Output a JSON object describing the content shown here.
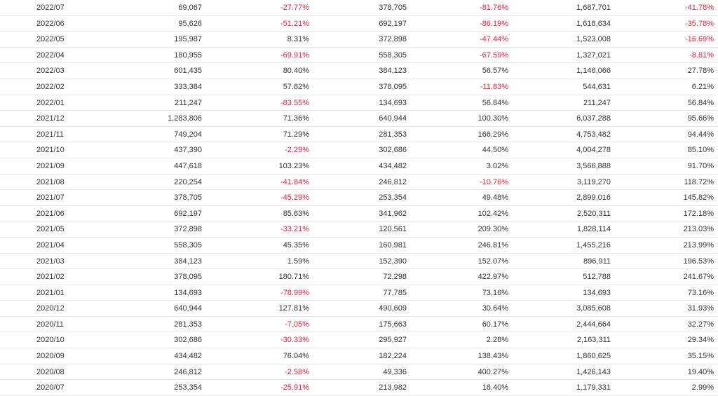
{
  "colors": {
    "negative": "#ee1f3b",
    "text": "#333333",
    "divider": "#e6e6e6"
  },
  "rows": [
    [
      "2022/07",
      "69,067",
      "-27.77%",
      "378,705",
      "-81.76%",
      "1,687,701",
      "-41.78%"
    ],
    [
      "2022/06",
      "95,626",
      "-51.21%",
      "692,197",
      "-86.19%",
      "1,618,634",
      "-35.78%"
    ],
    [
      "2022/05",
      "195,987",
      "8.31%",
      "372,898",
      "-47.44%",
      "1,523,008",
      "-16.69%"
    ],
    [
      "2022/04",
      "180,955",
      "-69.91%",
      "558,305",
      "-67.59%",
      "1,327,021",
      "-8.81%"
    ],
    [
      "2022/03",
      "601,435",
      "80.40%",
      "384,123",
      "56.57%",
      "1,146,066",
      "27.78%"
    ],
    [
      "2022/02",
      "333,384",
      "57.82%",
      "378,095",
      "-11.83%",
      "544,631",
      "6.21%"
    ],
    [
      "2022/01",
      "211,247",
      "-83.55%",
      "134,693",
      "56.84%",
      "211,247",
      "56.84%"
    ],
    [
      "2021/12",
      "1,283,806",
      "71.36%",
      "640,944",
      "100.30%",
      "6,037,288",
      "95.66%"
    ],
    [
      "2021/11",
      "749,204",
      "71.29%",
      "281,353",
      "166.29%",
      "4,753,482",
      "94.44%"
    ],
    [
      "2021/10",
      "437,390",
      "-2.29%",
      "302,686",
      "44.50%",
      "4,004,278",
      "85.10%"
    ],
    [
      "2021/09",
      "447,618",
      "103.23%",
      "434,482",
      "3.02%",
      "3,566,888",
      "91.70%"
    ],
    [
      "2021/08",
      "220,254",
      "-41.84%",
      "246,812",
      "-10.76%",
      "3,119,270",
      "118.72%"
    ],
    [
      "2021/07",
      "378,705",
      "-45.29%",
      "253,354",
      "49.48%",
      "2,899,016",
      "145.82%"
    ],
    [
      "2021/06",
      "692,197",
      "85.63%",
      "341,962",
      "102.42%",
      "2,520,311",
      "172.18%"
    ],
    [
      "2021/05",
      "372,898",
      "-33.21%",
      "120,561",
      "209.30%",
      "1,828,114",
      "213.03%"
    ],
    [
      "2021/04",
      "558,305",
      "45.35%",
      "160,981",
      "246.81%",
      "1,455,216",
      "213.99%"
    ],
    [
      "2021/03",
      "384,123",
      "1.59%",
      "152,390",
      "152.07%",
      "896,911",
      "196.53%"
    ],
    [
      "2021/02",
      "378,095",
      "180.71%",
      "72,298",
      "422.97%",
      "512,788",
      "241.67%"
    ],
    [
      "2021/01",
      "134,693",
      "-78.99%",
      "77,785",
      "73.16%",
      "134,693",
      "73.16%"
    ],
    [
      "2020/12",
      "640,944",
      "127.81%",
      "490,609",
      "30.64%",
      "3,085,608",
      "31.93%"
    ],
    [
      "2020/11",
      "281,353",
      "-7.05%",
      "175,663",
      "60.17%",
      "2,444,664",
      "32.27%"
    ],
    [
      "2020/10",
      "302,686",
      "-30.33%",
      "295,927",
      "2.28%",
      "2,163,311",
      "29.34%"
    ],
    [
      "2020/09",
      "434,482",
      "76.04%",
      "182,224",
      "138.43%",
      "1,860,625",
      "35.15%"
    ],
    [
      "2020/08",
      "246,812",
      "-2.58%",
      "49,336",
      "400.27%",
      "1,426,143",
      "19.40%"
    ],
    [
      "2020/07",
      "253,354",
      "-25.91%",
      "213,982",
      "18.40%",
      "1,179,331",
      "2.99%"
    ]
  ]
}
